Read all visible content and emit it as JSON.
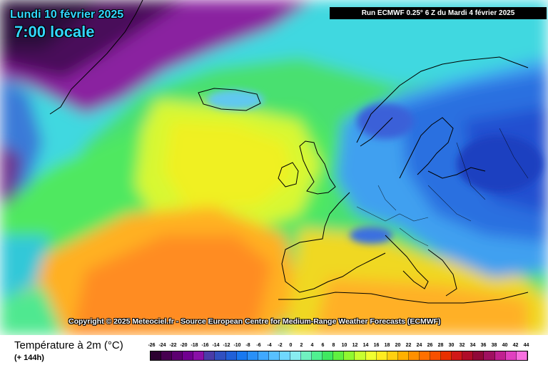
{
  "header": {
    "date": "Lundi 10 février 2025",
    "local_time": "7:00 locale",
    "run_info": "Run ECMWF 0.25° 6 Z du Mardi 4 février 2025"
  },
  "copyright": "Copyright © 2025 Meteociel.fr - Source European Centre for Medium-Range Weather Forecasts (ECMWF)",
  "footer": {
    "title": "Température à 2m (°C)",
    "subtitle": "(+ 144h)"
  },
  "legend": {
    "ticks": [
      "-26",
      "-24",
      "-22",
      "-20",
      "-18",
      "-16",
      "-14",
      "-12",
      "-10",
      "-8",
      "-6",
      "-4",
      "-2",
      "0",
      "2",
      "4",
      "6",
      "8",
      "10",
      "12",
      "14",
      "16",
      "18",
      "20",
      "22",
      "24",
      "26",
      "28",
      "30",
      "32",
      "34",
      "36",
      "38",
      "40",
      "42",
      "44"
    ],
    "colors": [
      "#2b0030",
      "#460050",
      "#5c0070",
      "#700090",
      "#8a10a8",
      "#4a3ca8",
      "#3050c0",
      "#2060d8",
      "#1878f0",
      "#2a90f8",
      "#40a8ff",
      "#58c0ff",
      "#70d8ff",
      "#88ecf0",
      "#70f0c0",
      "#50f090",
      "#40e860",
      "#60f040",
      "#90f830",
      "#c8ff30",
      "#f0ff30",
      "#ffec20",
      "#ffd010",
      "#ffb000",
      "#ff9000",
      "#ff7000",
      "#f85000",
      "#e83000",
      "#d01818",
      "#b00c28",
      "#900838",
      "#a01060",
      "#c02090",
      "#e040c0",
      "#f870e0"
    ]
  },
  "map_colors": {
    "deep_cold": "#2a0a3a",
    "polar_purple": "#6a1a8a",
    "cyan": "#50c8f0",
    "teal": "#3ee8c8",
    "green": "#40e860",
    "lime": "#b8f830",
    "yellow": "#f0f020",
    "orange": "#ffb020",
    "blue": "#2a70e8",
    "coast": "#000000"
  }
}
